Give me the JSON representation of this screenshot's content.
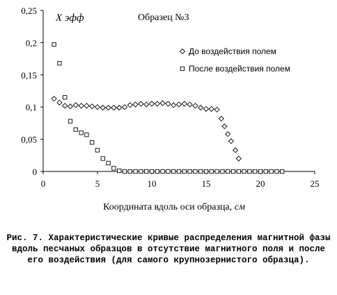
{
  "chart_data": {
    "type": "scatter",
    "annotations": {
      "y_symbol": "Χ эфф",
      "sample": "Образец №3"
    },
    "xlabel": "Координата вдоль оси образца, см",
    "ylabel": "",
    "xlim": [
      0,
      25
    ],
    "ylim": [
      0,
      0.25
    ],
    "x_ticks": [
      "0",
      "5",
      "10",
      "15",
      "20",
      "25"
    ],
    "y_ticks": [
      "0",
      "0,05",
      "0,1",
      "0,15",
      "0,2",
      "0,25"
    ],
    "grid": false,
    "legend_position": "top-right",
    "series": [
      {
        "name": "До воздействия полем",
        "marker": "diamond",
        "x": [
          1,
          1.5,
          2,
          2.5,
          3,
          3.5,
          4,
          4.5,
          5,
          5.5,
          6,
          6.5,
          7,
          7.5,
          8,
          8.5,
          9,
          9.5,
          10,
          10.5,
          11,
          11.5,
          12,
          12.5,
          13,
          13.5,
          14,
          14.5,
          15,
          15.5,
          16,
          16.4,
          16.7,
          17,
          17.3,
          17.7,
          18
        ],
        "y": [
          0.113,
          0.107,
          0.102,
          0.101,
          0.103,
          0.102,
          0.102,
          0.101,
          0.1,
          0.099,
          0.099,
          0.099,
          0.099,
          0.1,
          0.103,
          0.104,
          0.105,
          0.104,
          0.105,
          0.105,
          0.106,
          0.105,
          0.103,
          0.104,
          0.105,
          0.104,
          0.102,
          0.099,
          0.097,
          0.097,
          0.096,
          0.082,
          0.07,
          0.058,
          0.047,
          0.033,
          0.02
        ]
      },
      {
        "name": "После воздействия полем",
        "marker": "square",
        "x": [
          1,
          1.5,
          2,
          2.5,
          3,
          3.5,
          4,
          4.5,
          5,
          5.5,
          6,
          6.5,
          7,
          7.5,
          8,
          8.5,
          9,
          9.5,
          10,
          10.5,
          11,
          11.5,
          12,
          12.5,
          13,
          13.5,
          14,
          14.5,
          15,
          15.5,
          16,
          16.5,
          17,
          17.5,
          18,
          18.5,
          19,
          19.5,
          20,
          20.5,
          21,
          21.5,
          22
        ],
        "y": [
          0.197,
          0.168,
          0.115,
          0.078,
          0.065,
          0.06,
          0.057,
          0.045,
          0.033,
          0.02,
          0.013,
          0.005,
          0.001,
          0,
          0,
          0,
          0,
          0,
          0,
          0,
          0,
          0,
          0,
          0,
          0,
          0,
          0,
          0,
          0,
          0,
          0,
          0,
          0,
          0,
          0,
          0,
          0,
          0,
          0,
          0,
          0,
          0,
          0
        ]
      }
    ]
  },
  "caption": "Рис. 7. Характеристические кривые распределения магнитной фазы вдоль песчаных образцов в отсутствие магнитного поля и после его воздействия (для самого крупнозернистого образца)."
}
